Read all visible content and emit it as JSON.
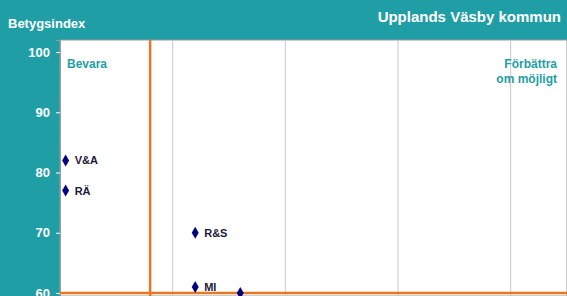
{
  "chart_data": {
    "type": "scatter",
    "title": "Upplands Väsby kommun",
    "y_label": "Betygsindex",
    "x": [
      0.005,
      0.005,
      0.12,
      0.12,
      0.16
    ],
    "values": [
      82,
      77,
      70,
      61,
      60
    ],
    "labels": [
      "V&A",
      "RÄ",
      "R&S",
      "MI",
      null
    ],
    "color": "#000080",
    "marker": "diamond",
    "xlim": [
      0,
      0.45
    ],
    "xticks": [
      0.1,
      0.2,
      0.3,
      0.4
    ],
    "ylim": [
      59.5,
      102
    ],
    "yticks": [
      60,
      70,
      80,
      90,
      100
    ],
    "grid": "x",
    "tick_labels": "y",
    "reference_lines": {
      "x": 0.08,
      "y": 60
    },
    "annotations": [
      {
        "text": [
          "Bevara"
        ]
      },
      {
        "text": [
          "Förbättra",
          "om möjligt"
        ]
      }
    ]
  }
}
